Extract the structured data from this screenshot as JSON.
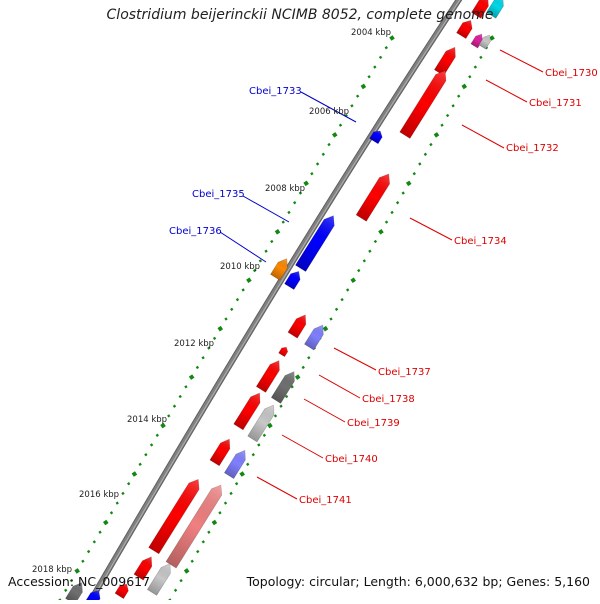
{
  "title": "Clostridium beijerinckii NCIMB 8052, complete genome",
  "footer": {
    "accession": "Accession: NC_009617",
    "summary": "Topology: circular; Length: 6,000,632 bp; Genes: 5,160"
  },
  "tick_labels": [
    "2004 kbp",
    "2006 kbp",
    "2008 kbp",
    "2010 kbp",
    "2012 kbp",
    "2014 kbp",
    "2016 kbp",
    "2018 kbp"
  ],
  "gene_labels_left": [
    "Cbei_1733",
    "Cbei_1735",
    "Cbei_1736"
  ],
  "gene_labels_right": [
    "Cbei_1730",
    "Cbei_1731",
    "Cbei_1732",
    "Cbei_1734",
    "Cbei_1737",
    "Cbei_1738",
    "Cbei_1739",
    "Cbei_1740",
    "Cbei_1741"
  ],
  "colors": {
    "forward_gene": "#ff0000",
    "reverse_gene": "#0000ff",
    "light_gene": "#8080ff",
    "pink_gene": "#f08080",
    "gray_gene": "#707070",
    "silver_gene": "#c8c8c8",
    "orange_gene": "#ff8800",
    "cyan_gene": "#00d8e8",
    "magenta_gene": "#e020a0",
    "backbone": "#808080",
    "tick_dots": "#118811",
    "left_label": "#0000cc",
    "right_label": "#dd0000"
  }
}
